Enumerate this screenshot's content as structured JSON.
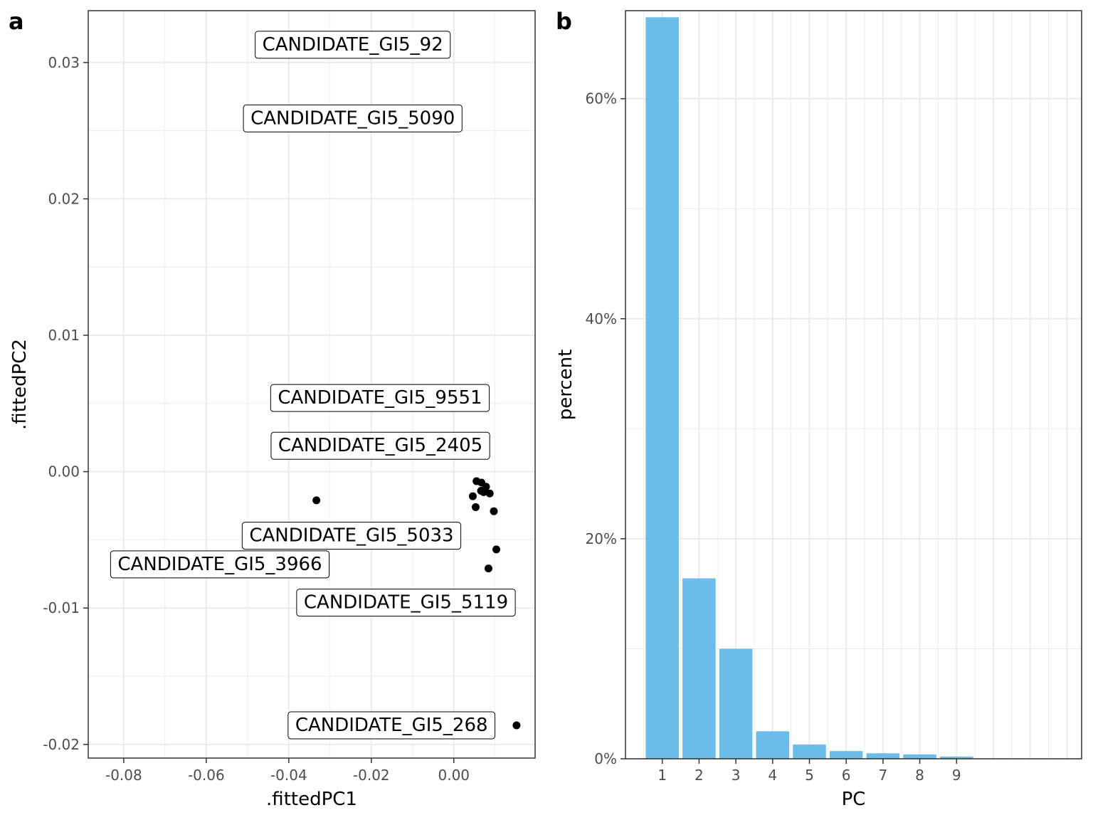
{
  "colors": {
    "bar_fill": "#6bbce9",
    "point": "#000000",
    "grid": "#ebebeb",
    "panel_border": "#333333"
  },
  "chart_data": [
    {
      "panel": "a",
      "type": "scatter",
      "xlabel": ".fittedPC1",
      "ylabel": ".fittedPC2",
      "xlim": [
        -0.0886,
        0.0197
      ],
      "ylim": [
        -0.021,
        0.0338
      ],
      "x_ticks": [
        -0.08,
        -0.06,
        -0.04,
        -0.02,
        0.0
      ],
      "x_tick_labels": [
        "-0.08",
        "-0.06",
        "-0.04",
        "-0.02",
        "0.00"
      ],
      "y_ticks": [
        -0.02,
        -0.01,
        0.0,
        0.01,
        0.02,
        0.03
      ],
      "y_tick_labels": [
        "-0.02",
        "-0.01",
        "0.00",
        "0.01",
        "0.02",
        "0.03"
      ],
      "points": [
        {
          "x": -0.0333,
          "y": -0.0021
        },
        {
          "x": 0.0055,
          "y": -0.0007
        },
        {
          "x": 0.0067,
          "y": -0.0008
        },
        {
          "x": 0.0078,
          "y": -0.0011
        },
        {
          "x": 0.0066,
          "y": -0.0014
        },
        {
          "x": 0.0072,
          "y": -0.0015
        },
        {
          "x": 0.0087,
          "y": -0.0016
        },
        {
          "x": 0.0046,
          "y": -0.0018
        },
        {
          "x": 0.0053,
          "y": -0.0026
        },
        {
          "x": 0.0097,
          "y": -0.0029
        },
        {
          "x": 0.0103,
          "y": -0.0057
        },
        {
          "x": 0.0084,
          "y": -0.0071
        },
        {
          "x": 0.0152,
          "y": -0.0186
        }
      ],
      "labels": [
        {
          "text": "CANDIDATE_GI5_92",
          "x": -0.0245,
          "y": 0.0313
        },
        {
          "text": "CANDIDATE_GI5_5090",
          "x": -0.0245,
          "y": 0.0259
        },
        {
          "text": "CANDIDATE_GI5_9551",
          "x": -0.0179,
          "y": 0.0054
        },
        {
          "text": "CANDIDATE_GI5_2405",
          "x": -0.0178,
          "y": 0.0019
        },
        {
          "text": "CANDIDATE_GI5_5033",
          "x": -0.0248,
          "y": -0.0047
        },
        {
          "text": "CANDIDATE_GI5_3966",
          "x": -0.0567,
          "y": -0.0068
        },
        {
          "text": "CANDIDATE_GI5_5119",
          "x": -0.0116,
          "y": -0.0096
        },
        {
          "text": "CANDIDATE_GI5_268",
          "x": -0.0151,
          "y": -0.0186
        }
      ]
    },
    {
      "panel": "b",
      "type": "bar",
      "xlabel": "PC",
      "ylabel": "percent",
      "categories": [
        "1",
        "2",
        "3",
        "4",
        "5",
        "6",
        "7",
        "8",
        "9"
      ],
      "values": [
        67.4,
        16.4,
        10.0,
        2.5,
        1.3,
        0.7,
        0.5,
        0.4,
        0.2
      ],
      "xlim": [
        0.0,
        12.4
      ],
      "ylim": [
        0,
        68.0
      ],
      "y_ticks": [
        0,
        20,
        40,
        60
      ],
      "y_tick_labels": [
        "0%",
        "20%",
        "40%",
        "60%"
      ]
    }
  ]
}
